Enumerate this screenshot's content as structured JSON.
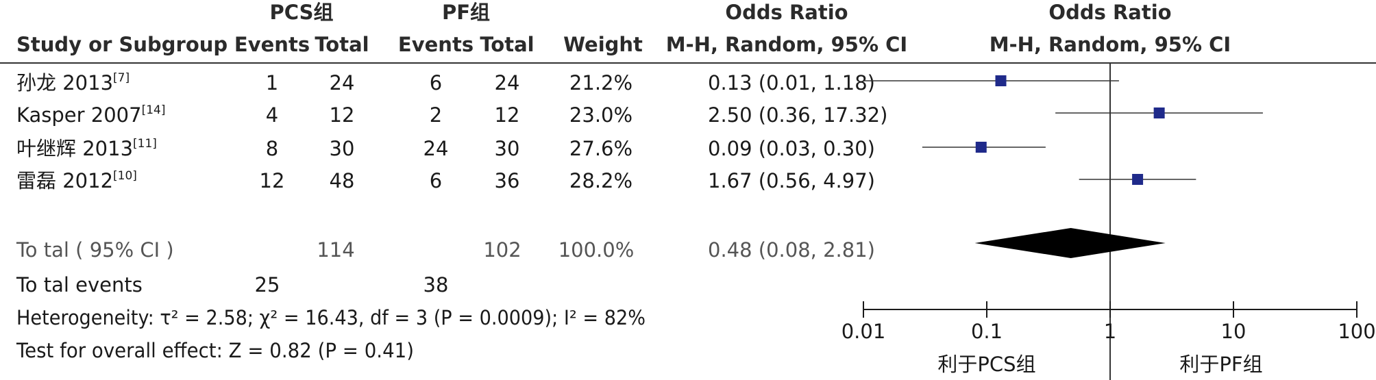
{
  "colors": {
    "text": "#1a1a1a",
    "muted": "#555555",
    "point": "#1f2a8a",
    "diamond": "#000000",
    "line": "#333333"
  },
  "header": {
    "group1": "PCS组",
    "group2": "PF组",
    "or_title": "Odds Ratio",
    "or_method": "M-H, Random, 95% CI",
    "col_study": "Study or Subgroup",
    "col_events": "Events",
    "col_total": "Total",
    "col_weight": "Weight"
  },
  "summary": {
    "label": "To tal ( 95% CI )",
    "total1": "114",
    "total2": "102",
    "weight": "100.0%",
    "ci_text": "0.48 (0.08, 2.81)",
    "events_label": "To tal events",
    "events1": "25",
    "events2": "38",
    "heterogeneity": "Heterogeneity:  τ² = 2.58;  χ² = 16.43, df = 3 (P = 0.0009); I² = 82%",
    "overall": "Test for overall effect: Z = 0.82 (P = 0.41)"
  },
  "axis": {
    "ticks": [
      "0.01",
      "0.1",
      "1",
      "10",
      "100"
    ],
    "favours_left": "利于PCS组",
    "favours_right": "利于PF组"
  },
  "chart_data": {
    "type": "forest",
    "scale": "log",
    "xlim": [
      0.01,
      100
    ],
    "reference_line": 1,
    "studies": [
      {
        "name": "孙龙 2013",
        "ref": "[7]",
        "events1": "1",
        "total1": "24",
        "events2": "6",
        "total2": "24",
        "weight": "21.2%",
        "ci_text": "0.13 (0.01, 1.18)",
        "or": 0.13,
        "lower": 0.01,
        "upper": 1.18
      },
      {
        "name": "Kasper 2007",
        "ref": "[14]",
        "events1": "4",
        "total1": "12",
        "events2": "2",
        "total2": "12",
        "weight": "23.0%",
        "ci_text": "2.50 (0.36, 17.32)",
        "or": 2.5,
        "lower": 0.36,
        "upper": 17.32
      },
      {
        "name": "叶继辉 2013",
        "ref": "[11]",
        "events1": "8",
        "total1": "30",
        "events2": "24",
        "total2": "30",
        "weight": "27.6%",
        "ci_text": "0.09 (0.03, 0.30)",
        "or": 0.09,
        "lower": 0.03,
        "upper": 0.3
      },
      {
        "name": "雷磊 2012",
        "ref": "[10]",
        "events1": "12",
        "total1": "48",
        "events2": "6",
        "total2": "36",
        "weight": "28.2%",
        "ci_text": "1.67 (0.56, 4.97)",
        "or": 1.67,
        "lower": 0.56,
        "upper": 4.97
      }
    ],
    "pooled": {
      "or": 0.48,
      "lower": 0.08,
      "upper": 2.81
    }
  }
}
